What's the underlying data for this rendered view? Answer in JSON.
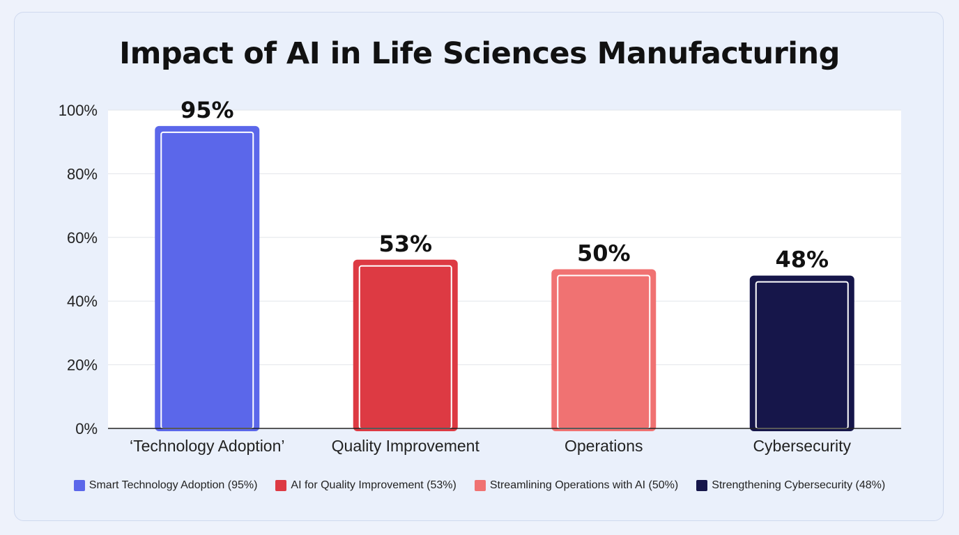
{
  "chart_data": {
    "type": "bar",
    "title": "Impact of AI in Life Sciences Manufacturing",
    "categories": [
      "‘Technology Adoption’",
      "Quality Improvement",
      "Operations",
      "Cybersecurity"
    ],
    "values": [
      95,
      53,
      50,
      48
    ],
    "data_labels": [
      "95%",
      "53%",
      "50%",
      "48%"
    ],
    "colors": [
      "#5b67ea",
      "#dd3a43",
      "#f07272",
      "#16164a"
    ],
    "yticks": [
      0,
      20,
      40,
      60,
      80,
      100
    ],
    "ytick_labels": [
      "0%",
      "20%",
      "40%",
      "60%",
      "80%",
      "100%"
    ],
    "ylim": [
      0,
      100
    ],
    "grid": true,
    "legend_position": "bottom",
    "legend": [
      "Smart Technology Adoption (95%)",
      "AI for Quality Improvement (53%)",
      "Streamlining Operations with AI (50%)",
      "Strengthening Cybersecurity (48%)"
    ]
  }
}
